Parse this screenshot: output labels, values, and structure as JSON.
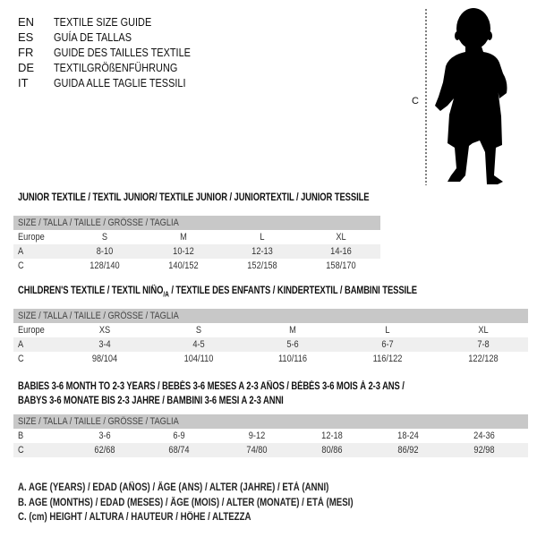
{
  "languages": [
    {
      "code": "EN",
      "title": "TEXTILE SIZE GUIDE"
    },
    {
      "code": "ES",
      "title": "GUÍA DE TALLAS"
    },
    {
      "code": "FR",
      "title": "GUIDE DES TAILLES TEXTILE"
    },
    {
      "code": "DE",
      "title": "TEXTILGRÖßENFÜHRUNG"
    },
    {
      "code": "IT",
      "title": "GUIDA ALLE TAGLIE TESSILI"
    }
  ],
  "figure": {
    "measure_label": "C",
    "icon": "child-silhouette"
  },
  "size_header": "SIZE / TALLA / TAILLE / GRÖSSE / TAGLIA",
  "junior": {
    "title": "JUNIOR TEXTILE / TEXTIL JUNIOR/ TEXTILE JUNIOR / JUNIORTEXTIL / JUNIOR TESSILE",
    "rows": [
      {
        "label": "Europe",
        "values": [
          "S",
          "M",
          "L",
          "XL"
        ]
      },
      {
        "label": "A",
        "values": [
          "8-10",
          "10-12",
          "12-13",
          "14-16"
        ]
      },
      {
        "label": "C",
        "values": [
          "128/140",
          "140/152",
          "152/158",
          "158/170"
        ]
      }
    ]
  },
  "children": {
    "title_pre": "CHILDREN'S TEXTILE / TEXTIL NIÑO",
    "title_sub": "/A",
    "title_post": " / TEXTILE DES ENFANTS / KINDERTEXTIL / BAMBINI TESSILE",
    "rows": [
      {
        "label": "Europe",
        "values": [
          "XS",
          "S",
          "M",
          "L",
          "XL"
        ]
      },
      {
        "label": "A",
        "values": [
          "3-4",
          "4-5",
          "5-6",
          "6-7",
          "7-8"
        ]
      },
      {
        "label": "C",
        "values": [
          "98/104",
          "104/110",
          "110/116",
          "116/122",
          "122/128"
        ]
      }
    ]
  },
  "babies": {
    "title_line1": "BABIES 3-6 MONTH TO 2-3 YEARS / BEBÉS 3-6 MESES A 2-3 AÑOS / BÉBÉS 3-6 MOIS À 2-3 ANS /",
    "title_line2": "BABYS 3-6 MONATE BIS 2-3 JAHRE / BAMBINI 3-6 MESI A 2-3 ANNI",
    "rows": [
      {
        "label": "B",
        "values": [
          "3-6",
          "6-9",
          "9-12",
          "12-18",
          "18-24",
          "24-36"
        ]
      },
      {
        "label": "C",
        "values": [
          "62/68",
          "68/74",
          "74/80",
          "80/86",
          "86/92",
          "92/98"
        ]
      }
    ]
  },
  "legend": [
    "A. AGE (YEARS) / EDAD (AÑOS) / ÂGE (ANS) / ALTER (JAHRE) / ETÀ (ANNI)",
    "B. AGE (MONTHS) / EDAD (MESES) / ÂGE (MOIS) / ALTER (MONATE) / ETÀ (MESI)",
    "C. (cm) HEIGHT / ALTURA / HAUTEUR / HÖHE / ALTEZZA"
  ]
}
